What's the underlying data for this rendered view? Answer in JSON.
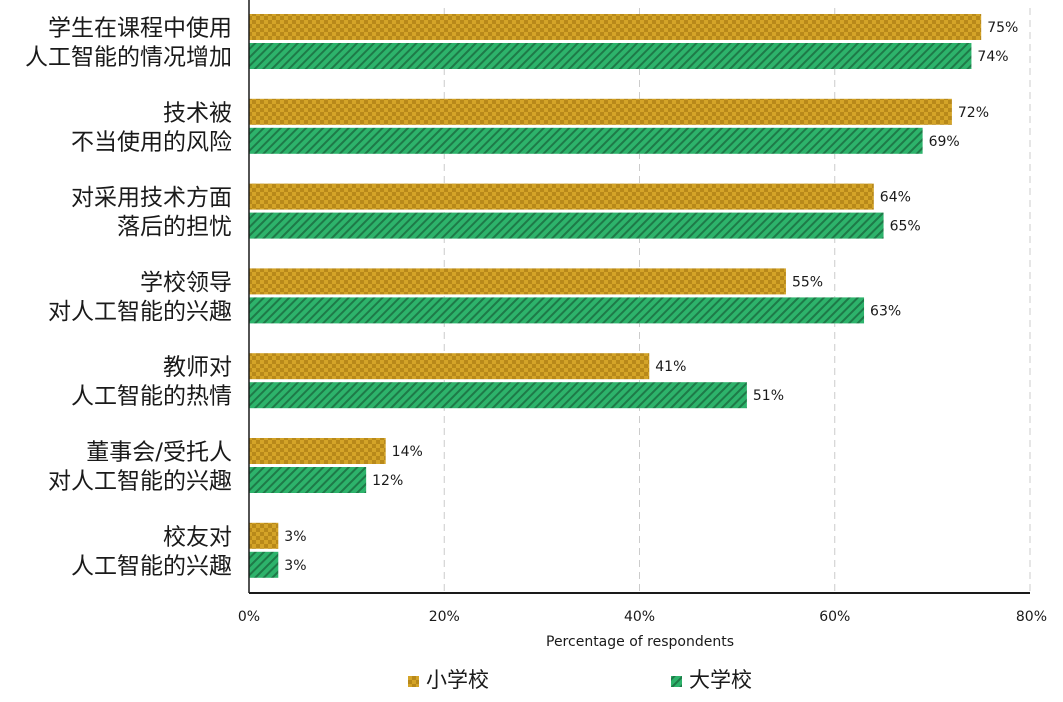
{
  "colors": {
    "primary_school": "#d4a428",
    "primary_school_pattern": "#b8891a",
    "university": "#2db36b",
    "university_pattern": "#1e7a48",
    "grid": "#cccccc",
    "axis": "#1a1a1a"
  },
  "chart_data": {
    "type": "bar",
    "orientation": "horizontal",
    "xlabel": "Percentage of respondents",
    "xlim": [
      0,
      80
    ],
    "xticks": [
      0,
      20,
      40,
      60,
      80
    ],
    "xtick_labels": [
      "0%",
      "20%",
      "40%",
      "60%",
      "80%"
    ],
    "grid": "vertical-dashed",
    "legend_position": "bottom",
    "categories": [
      [
        "学生在课程中使用",
        "人工智能的情况增加"
      ],
      [
        "技术被",
        "不当使用的风险"
      ],
      [
        "对采用技术方面",
        "落后的担忧"
      ],
      [
        "学校领导",
        "对人工智能的兴趣"
      ],
      [
        "教师对",
        "人工智能的热情"
      ],
      [
        "董事会/受托人",
        "对人工智能的兴趣"
      ],
      [
        "校友对",
        "人工智能的兴趣"
      ]
    ],
    "series": [
      {
        "name": "小学校",
        "values": [
          75,
          72,
          64,
          55,
          41,
          14,
          3
        ],
        "labels": [
          "75%",
          "72%",
          "64%",
          "55%",
          "41%",
          "14%",
          "3%"
        ]
      },
      {
        "name": "大学校",
        "values": [
          74,
          69,
          65,
          63,
          51,
          12,
          3
        ],
        "labels": [
          "74%",
          "69%",
          "65%",
          "63%",
          "51%",
          "12%",
          "3%"
        ]
      }
    ]
  }
}
